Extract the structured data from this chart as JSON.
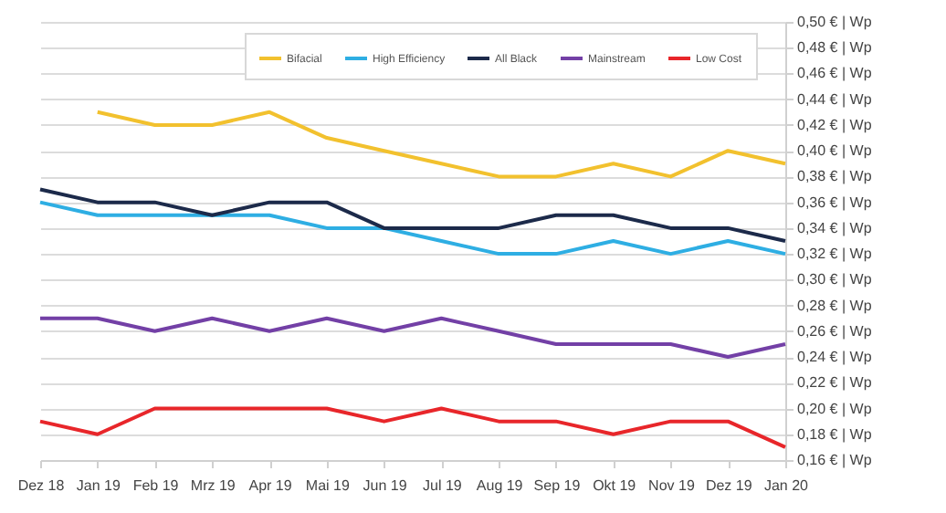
{
  "chart_data": {
    "type": "line",
    "categories": [
      "Dez 18",
      "Jan 19",
      "Feb 19",
      "Mrz 19",
      "Apr 19",
      "Mai 19",
      "Jun 19",
      "Jul 19",
      "Aug 19",
      "Sep 19",
      "Okt 19",
      "Nov 19",
      "Dez 19",
      "Jan 20"
    ],
    "series": [
      {
        "name": "Bifacial",
        "color": "#f2c12e",
        "values": [
          null,
          0.43,
          0.42,
          0.42,
          0.43,
          0.41,
          0.4,
          0.39,
          0.38,
          0.38,
          0.39,
          0.38,
          0.4,
          0.39
        ]
      },
      {
        "name": "High Efficiency",
        "color": "#2eaee3",
        "values": [
          0.36,
          0.35,
          0.35,
          0.35,
          0.35,
          0.34,
          0.34,
          0.33,
          0.32,
          0.32,
          0.33,
          0.32,
          0.33,
          0.32
        ]
      },
      {
        "name": "All Black",
        "color": "#1c2a4a",
        "values": [
          0.37,
          0.36,
          0.36,
          0.35,
          0.36,
          0.36,
          0.34,
          0.34,
          0.34,
          0.35,
          0.35,
          0.34,
          0.34,
          0.33
        ]
      },
      {
        "name": "Mainstream",
        "color": "#7340a6",
        "values": [
          0.27,
          0.27,
          0.26,
          0.27,
          0.26,
          0.27,
          0.26,
          0.27,
          0.26,
          0.25,
          0.25,
          0.25,
          0.24,
          0.25
        ]
      },
      {
        "name": "Low Cost",
        "color": "#e8262a",
        "values": [
          0.19,
          0.18,
          0.2,
          0.2,
          0.2,
          0.2,
          0.19,
          0.2,
          0.19,
          0.19,
          0.18,
          0.19,
          0.19,
          0.17
        ]
      }
    ],
    "ylim": [
      0.16,
      0.5
    ],
    "yticks": [
      {
        "value": 0.16,
        "label": "0,16 € | Wp"
      },
      {
        "value": 0.18,
        "label": "0,18 € | Wp"
      },
      {
        "value": 0.2,
        "label": "0,20 € | Wp"
      },
      {
        "value": 0.22,
        "label": "0,22 € | Wp"
      },
      {
        "value": 0.24,
        "label": "0,24 € | Wp"
      },
      {
        "value": 0.26,
        "label": "0,26 € | Wp"
      },
      {
        "value": 0.28,
        "label": "0,28 € | Wp"
      },
      {
        "value": 0.3,
        "label": "0,30 € | Wp"
      },
      {
        "value": 0.32,
        "label": "0,32 € | Wp"
      },
      {
        "value": 0.34,
        "label": "0,34 € | Wp"
      },
      {
        "value": 0.36,
        "label": "0,36 € | Wp"
      },
      {
        "value": 0.38,
        "label": "0,38 € | Wp"
      },
      {
        "value": 0.4,
        "label": "0,40 € | Wp"
      },
      {
        "value": 0.42,
        "label": "0,42 € | Wp"
      },
      {
        "value": 0.44,
        "label": "0,44 € | Wp"
      },
      {
        "value": 0.46,
        "label": "0,46 € | Wp"
      },
      {
        "value": 0.48,
        "label": "0,48 € | Wp"
      },
      {
        "value": 0.5,
        "label": "0,50 € | Wp"
      }
    ],
    "grid": "y",
    "legend": "top",
    "line_style": "solid"
  }
}
